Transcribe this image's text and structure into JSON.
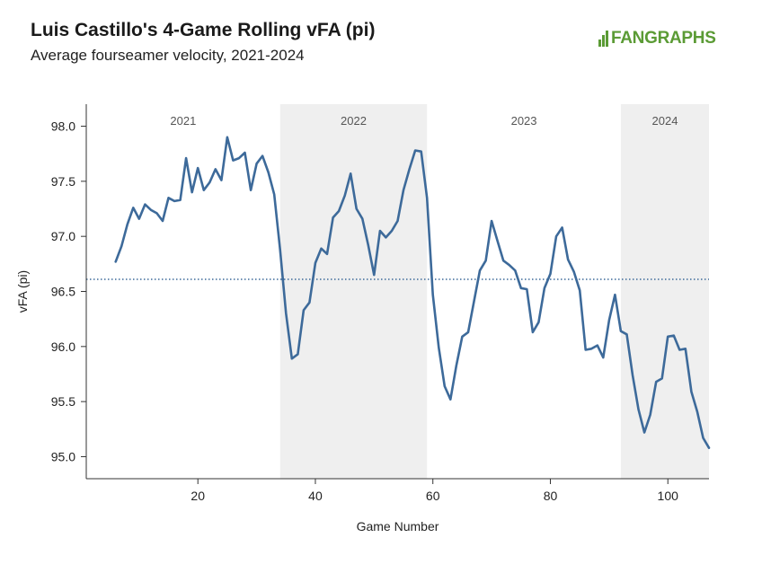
{
  "header": {
    "title": "Luis Castillo's 4-Game Rolling vFA (pi)",
    "subtitle": "Average fourseamer velocity, 2021-2024"
  },
  "brand": {
    "name": "FANGRAPHS",
    "color_primary": "#5b9b35",
    "color_secondary": "#2d2d2d"
  },
  "colors": {
    "line": "#3d6a9a",
    "reference_line": "#3d6a9a",
    "band": "#efefef",
    "axis": "#333333"
  },
  "chart_data": {
    "type": "line",
    "title": "Luis Castillo's 4-Game Rolling vFA (pi)",
    "subtitle": "Average fourseamer velocity, 2021-2024",
    "xlabel": "Game Number",
    "ylabel": "vFA (pi)",
    "xlim": [
      1,
      107
    ],
    "ylim": [
      94.8,
      98.2
    ],
    "x_ticks": [
      20,
      40,
      60,
      80,
      100
    ],
    "y_ticks": [
      95.0,
      95.5,
      96.0,
      96.5,
      97.0,
      97.5,
      98.0
    ],
    "y_tick_labels": [
      "95.0",
      "95.5",
      "96.0",
      "96.5",
      "97.0",
      "97.5",
      "98.0"
    ],
    "reference_line": {
      "y": 96.61,
      "style": "dotted"
    },
    "season_bands": [
      {
        "label": "2021",
        "start": 1,
        "end": 34,
        "shaded": false
      },
      {
        "label": "2022",
        "start": 34,
        "end": 59,
        "shaded": true
      },
      {
        "label": "2023",
        "start": 59,
        "end": 92,
        "shaded": false
      },
      {
        "label": "2024",
        "start": 92,
        "end": 107,
        "shaded": true
      }
    ],
    "series": [
      {
        "x": [
          6,
          7,
          8,
          9,
          10,
          11,
          12,
          13,
          14,
          15,
          16,
          17,
          18,
          19,
          20,
          21,
          22,
          23,
          24,
          25,
          26,
          27,
          28,
          29,
          30,
          31,
          32,
          33,
          34,
          35,
          36,
          37,
          38,
          39,
          40,
          41,
          42,
          43,
          44,
          45,
          46,
          47,
          48,
          49,
          50,
          51,
          52,
          53,
          54,
          55,
          56,
          57,
          58,
          59,
          60,
          61,
          62,
          63,
          64,
          65,
          66,
          67,
          68,
          69,
          70,
          71,
          72,
          73,
          74,
          75,
          76,
          77,
          78,
          79,
          80,
          81,
          82,
          83,
          84,
          85,
          86,
          87,
          88,
          89,
          90,
          91,
          92,
          93,
          94,
          95,
          96,
          97,
          98,
          99,
          100,
          101,
          102,
          103,
          104,
          105,
          106,
          107
        ],
        "y": [
          96.77,
          96.91,
          97.11,
          97.26,
          97.16,
          97.29,
          97.24,
          97.21,
          97.14,
          97.35,
          97.32,
          97.33,
          97.71,
          97.4,
          97.62,
          97.42,
          97.49,
          97.61,
          97.51,
          97.9,
          97.69,
          97.71,
          97.76,
          97.42,
          97.66,
          97.73,
          97.58,
          97.38,
          96.88,
          96.3,
          95.89,
          95.93,
          96.33,
          96.4,
          96.76,
          96.89,
          96.84,
          97.17,
          97.23,
          97.37,
          97.57,
          97.25,
          97.16,
          96.92,
          96.65,
          97.05,
          96.99,
          97.05,
          97.14,
          97.42,
          97.61,
          97.78,
          97.77,
          97.35,
          96.47,
          95.99,
          95.64,
          95.52,
          95.83,
          96.09,
          96.13,
          96.41,
          96.69,
          96.78,
          97.14,
          96.96,
          96.78,
          96.74,
          96.69,
          96.53,
          96.52,
          96.13,
          96.22,
          96.53,
          96.66,
          97.0,
          97.08,
          96.79,
          96.68,
          96.51,
          95.97,
          95.98,
          96.01,
          95.9,
          96.24,
          96.47,
          96.14,
          96.11,
          95.74,
          95.43,
          95.22,
          95.38,
          95.68,
          95.71,
          96.09,
          96.1,
          95.97,
          95.98,
          95.59,
          95.41,
          95.17,
          95.08
        ]
      }
    ]
  }
}
